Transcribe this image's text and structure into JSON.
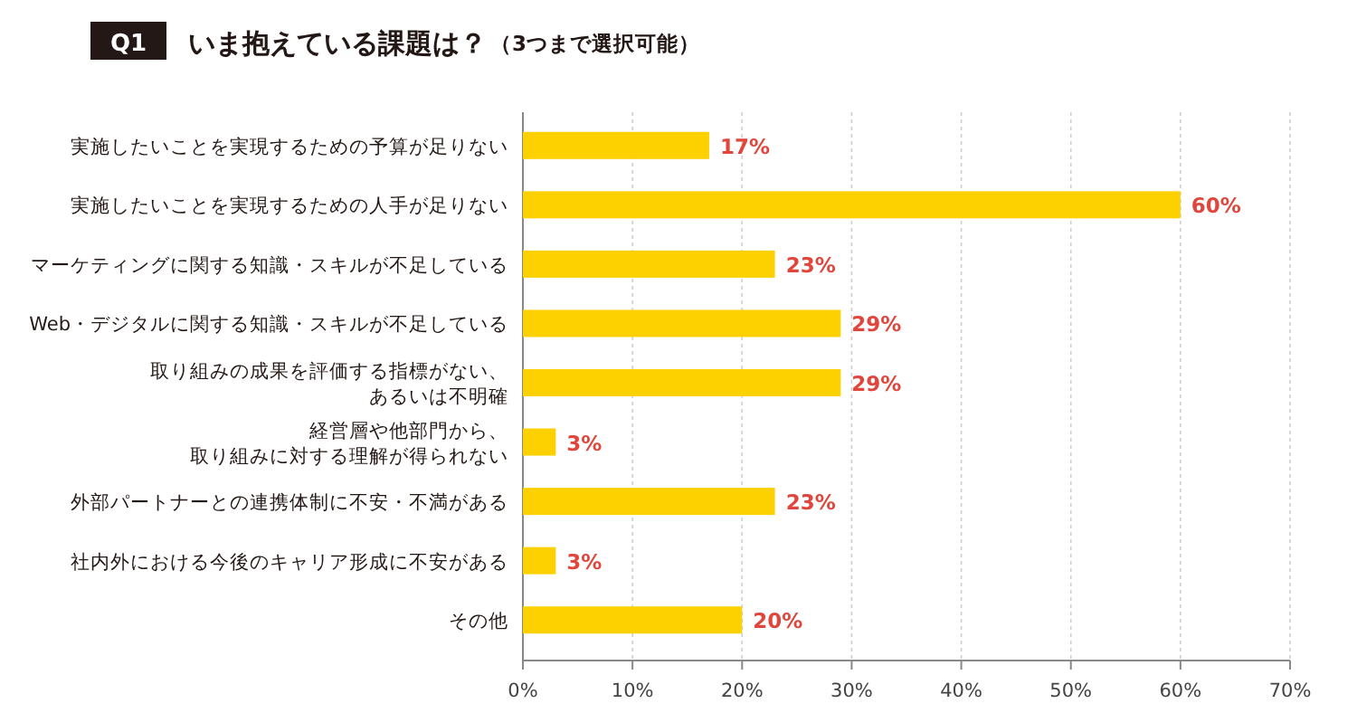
{
  "chart_data": {
    "type": "bar",
    "orientation": "horizontal",
    "title": "いま抱えている課題は？",
    "subtitle": "（3つまで選択可能）",
    "annotations": [
      "Q1"
    ],
    "categories": [
      "実施したいことを実現するための予算が足りない",
      "実施したいことを実現するための人手が足りない",
      "マーケティングに関する知識・スキルが不足している",
      "Web・デジタルに関する知識・スキルが不足している",
      "取り組みの成果を評価する指標がない、あるいは不明確",
      "経営層や他部門から、取り組みに対する理解が得られない",
      "外部パートナーとの連携体制に不安・不満がある",
      "社内外における今後のキャリア形成に不安がある",
      "その他"
    ],
    "values": [
      17,
      60,
      23,
      29,
      29,
      3,
      23,
      3,
      20
    ],
    "value_labels": [
      "17%",
      "60%",
      "23%",
      "29%",
      "29%",
      "3%",
      "23%",
      "3%",
      "20%"
    ],
    "color": "#fdd000",
    "xlim": [
      0,
      70
    ],
    "xticks": [
      {
        "value": 0,
        "label": "0%"
      },
      {
        "value": 10,
        "label": "10%"
      },
      {
        "value": 20,
        "label": "20%"
      },
      {
        "value": 30,
        "label": "30%"
      },
      {
        "value": 40,
        "label": "40%"
      },
      {
        "value": 50,
        "label": "50%"
      },
      {
        "value": 60,
        "label": "60%"
      },
      {
        "value": 70,
        "label": "70%"
      }
    ],
    "grid": "x"
  }
}
